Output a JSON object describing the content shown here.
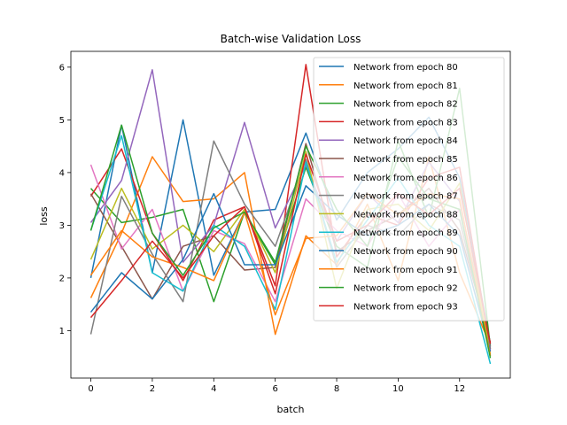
{
  "chart_data": {
    "type": "line",
    "title": "Batch-wise Validation Loss",
    "xlabel": "batch",
    "ylabel": "loss",
    "xlim": [
      -0.65,
      13.65
    ],
    "ylim": [
      0.1,
      6.3
    ],
    "xticks": [
      0,
      2,
      4,
      6,
      8,
      10,
      12
    ],
    "yticks": [
      1,
      2,
      3,
      4,
      5,
      6
    ],
    "grid": false,
    "legend_position": "upper-right",
    "x": [
      0,
      1,
      2,
      3,
      4,
      5,
      6,
      7,
      8,
      9,
      10,
      11,
      12,
      13
    ],
    "series": [
      {
        "name": "Network from epoch 80",
        "color": "#1f77b4",
        "values": [
          2.0,
          4.9,
          2.1,
          5.0,
          2.05,
          3.25,
          3.3,
          4.75,
          3.1,
          4.0,
          4.45,
          5.05,
          3.9,
          0.75
        ]
      },
      {
        "name": "Network from epoch 81",
        "color": "#ff7f0e",
        "values": [
          1.62,
          2.85,
          4.3,
          3.45,
          3.5,
          4.0,
          0.93,
          2.8,
          2.25,
          3.4,
          1.95,
          4.3,
          2.1,
          0.72
        ]
      },
      {
        "name": "Network from epoch 82",
        "color": "#2ca02c",
        "values": [
          3.7,
          3.05,
          3.15,
          3.3,
          1.55,
          3.25,
          2.25,
          4.1,
          2.6,
          2.2,
          4.6,
          3.15,
          5.6,
          0.7
        ]
      },
      {
        "name": "Network from epoch 83",
        "color": "#d62728",
        "values": [
          3.55,
          4.45,
          2.85,
          1.95,
          3.1,
          3.35,
          1.85,
          6.05,
          2.4,
          3.2,
          3.0,
          3.9,
          4.1,
          0.65
        ]
      },
      {
        "name": "Network from epoch 84",
        "color": "#9467bd",
        "values": [
          3.05,
          3.85,
          5.95,
          2.3,
          3.0,
          4.95,
          2.95,
          4.15,
          2.7,
          3.6,
          3.05,
          4.2,
          3.45,
          0.68
        ]
      },
      {
        "name": "Network from epoch 85",
        "color": "#8c564b",
        "values": [
          3.6,
          2.6,
          1.6,
          2.6,
          2.8,
          2.15,
          2.2,
          4.55,
          2.5,
          2.9,
          3.2,
          3.7,
          2.9,
          0.78
        ]
      },
      {
        "name": "Network from epoch 86",
        "color": "#e377c2",
        "values": [
          4.15,
          2.55,
          3.3,
          1.75,
          2.9,
          2.65,
          1.55,
          3.5,
          2.9,
          2.6,
          3.6,
          2.6,
          3.3,
          0.62
        ]
      },
      {
        "name": "Network from epoch 87",
        "color": "#7f7f7f",
        "values": [
          0.93,
          3.55,
          2.45,
          1.55,
          4.6,
          3.4,
          2.6,
          4.25,
          2.2,
          3.0,
          2.8,
          3.4,
          3.1,
          0.66
        ]
      },
      {
        "name": "Network from epoch 88",
        "color": "#bcbd22",
        "values": [
          2.35,
          3.7,
          2.55,
          3.0,
          2.5,
          3.3,
          2.1,
          4.4,
          1.8,
          3.3,
          3.4,
          2.9,
          3.8,
          0.55
        ]
      },
      {
        "name": "Network from epoch 89",
        "color": "#17becf",
        "values": [
          2.9,
          4.7,
          2.1,
          1.75,
          3.0,
          2.6,
          1.4,
          4.2,
          2.3,
          3.1,
          3.9,
          3.0,
          2.6,
          0.37
        ]
      },
      {
        "name": "Network from epoch 90",
        "color": "#1f77b4",
        "values": [
          1.35,
          2.1,
          1.6,
          2.35,
          3.6,
          2.25,
          2.25,
          3.75,
          3.2,
          2.8,
          3.0,
          3.4,
          2.8,
          0.6
        ]
      },
      {
        "name": "Network from epoch 91",
        "color": "#ff7f0e",
        "values": [
          2.05,
          2.9,
          2.4,
          2.2,
          1.95,
          3.25,
          1.3,
          2.75,
          2.8,
          3.6,
          3.2,
          3.6,
          3.5,
          0.52
        ]
      },
      {
        "name": "Network from epoch 92",
        "color": "#2ca02c",
        "values": [
          2.9,
          4.9,
          2.85,
          2.05,
          2.95,
          3.25,
          2.3,
          4.5,
          3.3,
          2.6,
          4.3,
          3.5,
          3.3,
          0.48
        ]
      },
      {
        "name": "Network from epoch 93",
        "color": "#d62728",
        "values": [
          1.25,
          1.95,
          2.7,
          2.0,
          2.8,
          3.35,
          1.7,
          4.35,
          2.7,
          3.0,
          3.6,
          3.2,
          3.7,
          0.75
        ]
      }
    ]
  }
}
